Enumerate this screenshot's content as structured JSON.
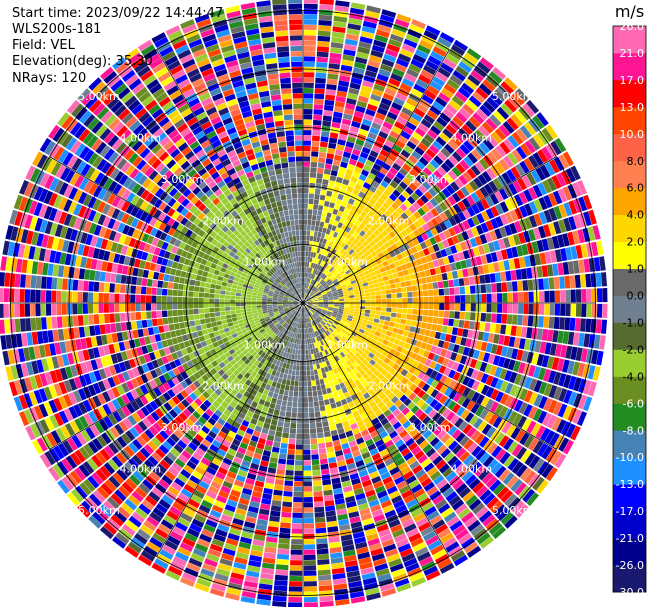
{
  "header": {
    "start_time": "Start time: 2023/09/22 14:44:47",
    "instrument": "WLS200s-181",
    "field": "Field: VEL",
    "elevation": "Elevation(deg): 35.30",
    "nrays": "NRays: 120"
  },
  "chart_data": {
    "type": "heatmap",
    "projection": "polar PPI",
    "field": "VEL",
    "nrays": 120,
    "range_rings_km": [
      1,
      2,
      3,
      4,
      5
    ],
    "range_ring_labels": [
      "1.00km",
      "2.00km",
      "3.00km",
      "4.00km",
      "5.00km"
    ],
    "grid": true,
    "colorbar": {
      "unit": "m/s",
      "position": "right",
      "boundaries": [
        -30.0,
        -26.0,
        -21.0,
        -17.0,
        -13.0,
        -10.0,
        -8.0,
        -6.0,
        -4.0,
        -2.0,
        -1.0,
        0.0,
        1.0,
        2.0,
        4.0,
        6.0,
        8.0,
        10.0,
        13.0,
        17.0,
        21.0,
        26.0
      ],
      "tick_labels": [
        "-30.0",
        "-26.0",
        "-21.0",
        "-17.0",
        "-13.0",
        "-10.0",
        "-8.0",
        "-6.0",
        "-4.0",
        "-2.0",
        "-1.0",
        "0.0",
        "1.0",
        "2.0",
        "4.0",
        "6.0",
        "8.0",
        "10.0",
        "13.0",
        "17.0",
        "21.0",
        "26.0"
      ],
      "colors": [
        "#191970",
        "#00008b",
        "#0000cd",
        "#0000ff",
        "#1e90ff",
        "#4682b4",
        "#228b22",
        "#6b8e23",
        "#9acd32",
        "#556b2f",
        "#708090",
        "#696969",
        "#ffff00",
        "#ffd700",
        "#ffa500",
        "#ff7f50",
        "#ff6347",
        "#ff4500",
        "#ff0000",
        "#ff1493",
        "#ff69b4"
      ]
    },
    "pattern": {
      "noise_beyond_km": 2.2,
      "west_half": "negative velocities (greens, -8 to -1 m/s)",
      "east_half": "positive velocities (yellows/orange, 0 to 6 m/s)",
      "near_field": "near-zero velocities (grey)"
    }
  }
}
